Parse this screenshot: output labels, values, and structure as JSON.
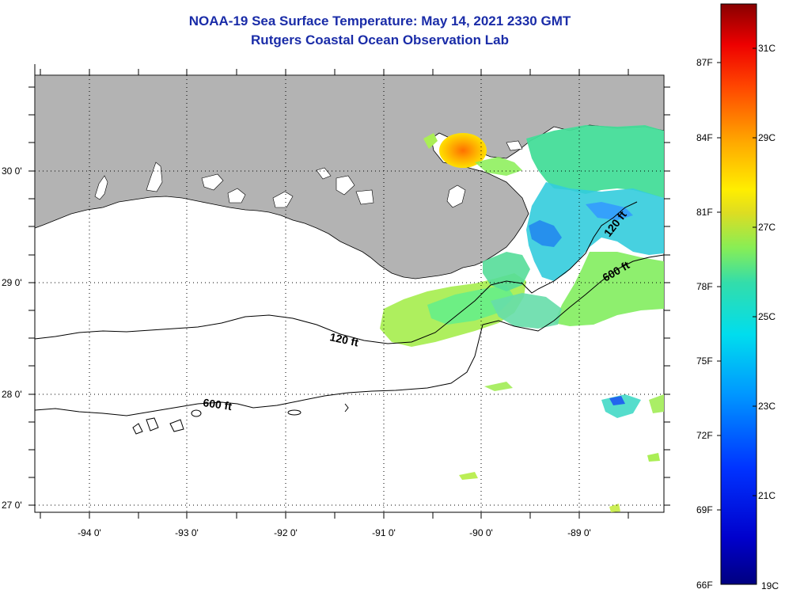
{
  "title": {
    "line1": "NOAA-19 Sea Surface Temperature:  May 14, 2021 2330 GMT",
    "line2": "Rutgers Coastal Ocean Observation Lab"
  },
  "map": {
    "lat_labels": [
      "30 0'",
      "29 0'",
      "28 0'",
      "27 0'"
    ],
    "lon_labels": [
      "-94 0'",
      "-93 0'",
      "-92 0'",
      "-91 0'",
      "-90 0'",
      "-89 0'"
    ],
    "contour_labels": [
      "120 ft",
      "600 ft",
      "120 ft",
      "600 ft"
    ]
  },
  "colorbar": {
    "fahrenheit_labels": [
      "87F",
      "84F",
      "81F",
      "78F",
      "75F",
      "72F",
      "69F",
      "66F"
    ],
    "celsius_labels": [
      "31C",
      "29C",
      "27C",
      "25C",
      "23C",
      "21C",
      "19C"
    ]
  },
  "colors": {
    "title": "#1a2ca8",
    "land": "#b3b3b3",
    "ocean": "#ffffff"
  }
}
